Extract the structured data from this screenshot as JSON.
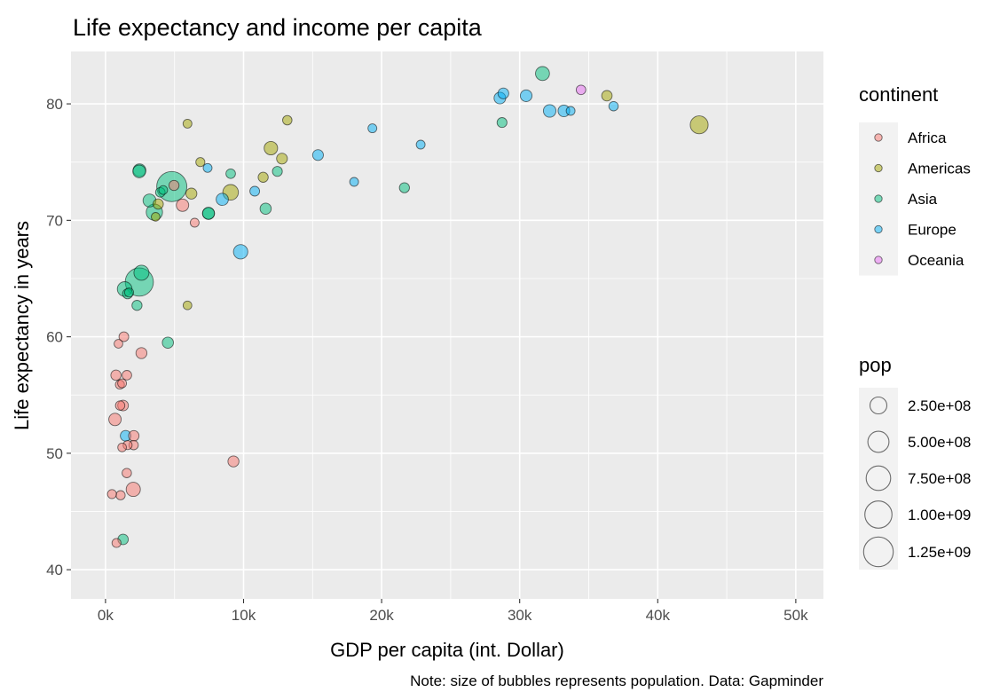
{
  "chart_data": {
    "type": "scatter",
    "title": "Life expectancy and income per capita",
    "xlabel": "GDP per capita (int. Dollar)",
    "ylabel": "Life expectancy in years",
    "caption": "Note: size of bubbles represents population. Data: Gapminder",
    "xlim": [
      -2500,
      52000
    ],
    "ylim": [
      37.5,
      84.5
    ],
    "x_ticks": [
      0,
      10000,
      20000,
      30000,
      40000,
      50000
    ],
    "x_tick_labels": [
      "0k",
      "10k",
      "20k",
      "30k",
      "40k",
      "50k"
    ],
    "y_ticks": [
      40,
      50,
      60,
      70,
      80
    ],
    "y_tick_labels": [
      "40",
      "50",
      "60",
      "70",
      "80"
    ],
    "grid": true,
    "panel_background": "#ebebeb",
    "legend_position": "right",
    "color_legend": {
      "title": "continent",
      "entries": [
        {
          "name": "Africa",
          "color": "#F8766D"
        },
        {
          "name": "Americas",
          "color": "#A3A500"
        },
        {
          "name": "Asia",
          "color": "#00BF7D"
        },
        {
          "name": "Europe",
          "color": "#00B0F6"
        },
        {
          "name": "Oceania",
          "color": "#E76BF3"
        }
      ]
    },
    "size_legend": {
      "title": "pop",
      "entries": [
        {
          "value": 250000000,
          "label": "2.50e+08"
        },
        {
          "value": 500000000,
          "label": "5.00e+08"
        },
        {
          "value": 750000000,
          "label": "7.50e+08"
        },
        {
          "value": 1000000000,
          "label": "1.00e+09"
        },
        {
          "value": 1250000000,
          "label": "1.25e+09"
        }
      ]
    },
    "points": [
      {
        "x": 4800,
        "y": 72.9,
        "pop": 1318000000,
        "continent": "Asia"
      },
      {
        "x": 2450,
        "y": 64.7,
        "pop": 1110000000,
        "continent": "Asia"
      },
      {
        "x": 43000,
        "y": 78.2,
        "pop": 301000000,
        "continent": "Americas"
      },
      {
        "x": 3540,
        "y": 70.7,
        "pop": 224000000,
        "continent": "Asia"
      },
      {
        "x": 9060,
        "y": 72.4,
        "pop": 190000000,
        "continent": "Americas"
      },
      {
        "x": 2600,
        "y": 65.5,
        "pop": 169000000,
        "continent": "Asia"
      },
      {
        "x": 2010,
        "y": 46.9,
        "pop": 135000000,
        "continent": "Africa"
      },
      {
        "x": 1390,
        "y": 64.1,
        "pop": 150000000,
        "continent": "Asia"
      },
      {
        "x": 31650,
        "y": 82.6,
        "pop": 127000000,
        "continent": "Asia"
      },
      {
        "x": 9790,
        "y": 67.3,
        "pop": 141000000,
        "continent": "Europe"
      },
      {
        "x": 11980,
        "y": 76.2,
        "pop": 108000000,
        "continent": "Americas"
      },
      {
        "x": 3190,
        "y": 71.7,
        "pop": 91000000,
        "continent": "Asia"
      },
      {
        "x": 2440,
        "y": 74.2,
        "pop": 85000000,
        "continent": "Asia"
      },
      {
        "x": 32170,
        "y": 79.4,
        "pop": 82400000,
        "continent": "Europe"
      },
      {
        "x": 5580,
        "y": 71.3,
        "pop": 79000000,
        "continent": "Africa"
      },
      {
        "x": 8460,
        "y": 71.8,
        "pop": 71000000,
        "continent": "Europe"
      },
      {
        "x": 7460,
        "y": 70.6,
        "pop": 69500000,
        "continent": "Asia"
      },
      {
        "x": 690,
        "y": 52.9,
        "pop": 76500000,
        "continent": "Africa"
      },
      {
        "x": 7460,
        "y": 70.6,
        "pop": 65000000,
        "continent": "Asia"
      },
      {
        "x": 30470,
        "y": 80.7,
        "pop": 61000000,
        "continent": "Europe"
      },
      {
        "x": 33200,
        "y": 79.4,
        "pop": 60800000,
        "continent": "Europe"
      },
      {
        "x": 28570,
        "y": 80.5,
        "pop": 58100000,
        "continent": "Europe"
      },
      {
        "x": 9270,
        "y": 49.3,
        "pop": 44000000,
        "continent": "Africa"
      },
      {
        "x": 11600,
        "y": 71.0,
        "pop": 47000000,
        "continent": "Asia"
      },
      {
        "x": 28820,
        "y": 80.9,
        "pop": 40400000,
        "continent": "Europe"
      },
      {
        "x": 1460,
        "y": 51.5,
        "pop": 35600000,
        "continent": "Europe"
      },
      {
        "x": 12780,
        "y": 75.3,
        "pop": 40300000,
        "continent": "Americas"
      },
      {
        "x": 2600,
        "y": 58.6,
        "pop": 42300000,
        "continent": "Africa"
      },
      {
        "x": 15390,
        "y": 75.6,
        "pop": 38500000,
        "continent": "Europe"
      },
      {
        "x": 1270,
        "y": 54.1,
        "pop": 38100000,
        "continent": "Africa"
      },
      {
        "x": 6220,
        "y": 72.3,
        "pop": 44200000,
        "continent": "Americas"
      },
      {
        "x": 4520,
        "y": 59.5,
        "pop": 47800000,
        "continent": "Asia"
      },
      {
        "x": 2050,
        "y": 51.5,
        "pop": 33000000,
        "continent": "Africa"
      },
      {
        "x": 36320,
        "y": 80.7,
        "pop": 33400000,
        "continent": "Americas"
      },
      {
        "x": 4960,
        "y": 73.0,
        "pop": 26000000,
        "continent": "Africa"
      },
      {
        "x": 3820,
        "y": 71.4,
        "pop": 29000000,
        "continent": "Americas"
      },
      {
        "x": 1270,
        "y": 42.6,
        "pop": 31900000,
        "continent": "Asia"
      },
      {
        "x": 11420,
        "y": 73.7,
        "pop": 27000000,
        "continent": "Americas"
      },
      {
        "x": 2280,
        "y": 62.7,
        "pop": 28300000,
        "continent": "Asia"
      },
      {
        "x": 760,
        "y": 56.7,
        "pop": 29200000,
        "continent": "Africa"
      },
      {
        "x": 21650,
        "y": 72.8,
        "pop": 27600000,
        "continent": "Asia"
      },
      {
        "x": 1600,
        "y": 63.7,
        "pop": 26900000,
        "continent": "Asia"
      },
      {
        "x": 12450,
        "y": 74.2,
        "pop": 24800000,
        "continent": "Asia"
      },
      {
        "x": 34440,
        "y": 81.2,
        "pop": 20400000,
        "continent": "Oceania"
      },
      {
        "x": 28720,
        "y": 78.4,
        "pop": 23200000,
        "continent": "Asia"
      },
      {
        "x": 1330,
        "y": 60.0,
        "pop": 22900000,
        "continent": "Africa"
      },
      {
        "x": 10810,
        "y": 72.5,
        "pop": 22300000,
        "continent": "Europe"
      },
      {
        "x": 2460,
        "y": 74.3,
        "pop": 85200000,
        "continent": "Asia"
      },
      {
        "x": 9070,
        "y": 74.0,
        "pop": 20200000,
        "continent": "Asia"
      },
      {
        "x": 1550,
        "y": 56.7,
        "pop": 19900000,
        "continent": "Africa"
      },
      {
        "x": 1540,
        "y": 48.3,
        "pop": 18000000,
        "continent": "Africa"
      },
      {
        "x": 3970,
        "y": 72.4,
        "pop": 19300000,
        "continent": "Asia"
      },
      {
        "x": 13170,
        "y": 78.6,
        "pop": 16300000,
        "continent": "Americas"
      },
      {
        "x": 36800,
        "y": 79.8,
        "pop": 16600000,
        "continent": "Europe"
      },
      {
        "x": 1060,
        "y": 54.1,
        "pop": 17700000,
        "continent": "Africa"
      },
      {
        "x": 2040,
        "y": 50.7,
        "pop": 17700000,
        "continent": "Africa"
      },
      {
        "x": 1090,
        "y": 46.4,
        "pop": 14300000,
        "continent": "Africa"
      },
      {
        "x": 470,
        "y": 46.5,
        "pop": 13600000,
        "continent": "Africa"
      },
      {
        "x": 800,
        "y": 42.3,
        "pop": 12300000,
        "continent": "Africa"
      },
      {
        "x": 6870,
        "y": 75.0,
        "pop": 12600000,
        "continent": "Americas"
      },
      {
        "x": 1710,
        "y": 63.8,
        "pop": 13500000,
        "continent": "Asia"
      },
      {
        "x": 1600,
        "y": 50.7,
        "pop": 12900000,
        "continent": "Africa"
      },
      {
        "x": 19330,
        "y": 77.9,
        "pop": 10300000,
        "continent": "Europe"
      },
      {
        "x": 1040,
        "y": 55.9,
        "pop": 11900000,
        "continent": "Africa"
      },
      {
        "x": 1200,
        "y": 56.0,
        "pop": 10900000,
        "continent": "Africa"
      },
      {
        "x": 33690,
        "y": 79.4,
        "pop": 10400000,
        "continent": "Europe"
      },
      {
        "x": 3630,
        "y": 70.3,
        "pop": 9100000,
        "continent": "Americas"
      },
      {
        "x": 5940,
        "y": 78.3,
        "pop": 11400000,
        "continent": "Americas"
      },
      {
        "x": 22830,
        "y": 76.5,
        "pop": 10200000,
        "continent": "Europe"
      },
      {
        "x": 7400,
        "y": 74.5,
        "pop": 10500000,
        "continent": "Europe"
      },
      {
        "x": 4180,
        "y": 72.6,
        "pop": 10100000,
        "continent": "Asia"
      },
      {
        "x": 6460,
        "y": 69.8,
        "pop": 10300000,
        "continent": "Africa"
      },
      {
        "x": 18010,
        "y": 73.3,
        "pop": 10200000,
        "continent": "Europe"
      },
      {
        "x": 940,
        "y": 59.4,
        "pop": 10000000,
        "continent": "Africa"
      },
      {
        "x": 5940,
        "y": 62.7,
        "pop": 9300000,
        "continent": "Americas"
      },
      {
        "x": 1200,
        "y": 50.5,
        "pop": 9300000,
        "continent": "Africa"
      }
    ]
  }
}
